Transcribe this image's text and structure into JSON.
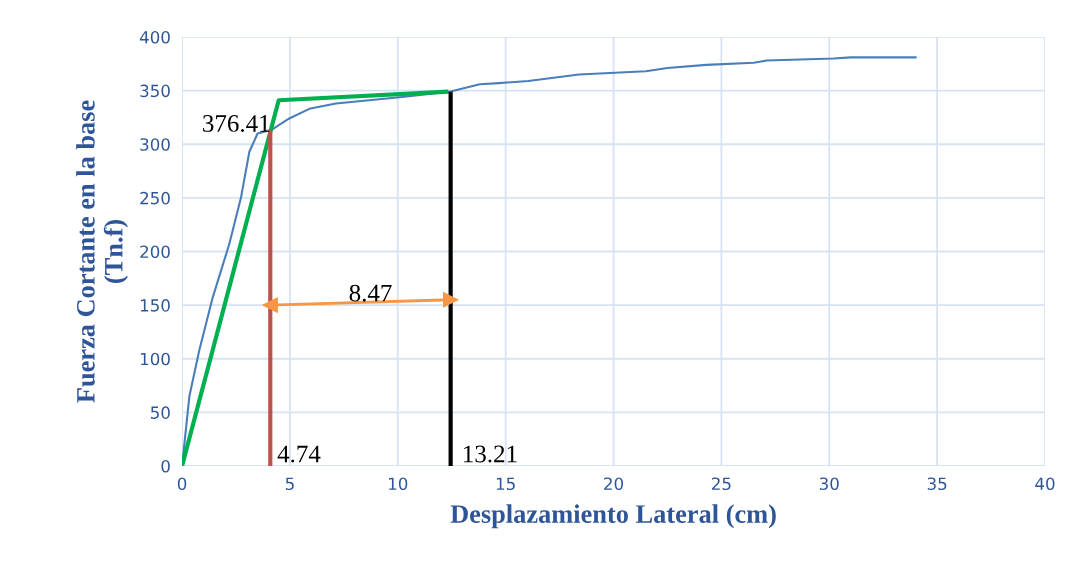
{
  "chart_data": {
    "type": "line",
    "xlabel": "Desplazamiento Lateral (cm)",
    "ylabel": "Fuerza Cortante en la base\n(Tn.f)",
    "xlim": [
      0,
      40
    ],
    "xticks": [
      0,
      5,
      10,
      15,
      20,
      25,
      30,
      35,
      40
    ],
    "ylim": [
      0,
      400
    ],
    "yticks": [
      0,
      50,
      100,
      150,
      200,
      250,
      300,
      350,
      400
    ],
    "grid": true,
    "series": [
      {
        "color": "#4a7ebb",
        "x": [
          0,
          0.34,
          0.8,
          1.42,
          2.19,
          2.73,
          3.12,
          3.5,
          3.89,
          4.2,
          4.97,
          5.9,
          7.13,
          8.67,
          10.2,
          12.4,
          13.8,
          14.7,
          16.05,
          18.4,
          21.5,
          22.5,
          24.3,
          26.5,
          27.1,
          30.2,
          31.0,
          34.05
        ],
        "values": [
          0,
          65,
          108,
          157,
          207,
          250,
          293,
          310,
          312,
          314,
          324,
          333,
          338,
          341,
          344,
          349,
          356,
          357,
          359,
          365,
          368,
          371,
          374,
          376,
          378,
          380,
          381,
          381
        ]
      },
      {
        "color": "#00b050",
        "x": [
          0,
          4.48,
          12.35
        ],
        "values": [
          0,
          341,
          349
        ]
      },
      {
        "color": "#c0504d",
        "x": [
          4.09,
          4.09
        ],
        "values": [
          0,
          313
        ]
      },
      {
        "color": "#000000",
        "x": [
          12.45,
          12.45
        ],
        "values": [
          0,
          349
        ]
      },
      {
        "color": "#f79646",
        "marker": "triangle",
        "x": [
          4.09,
          12.45
        ],
        "values": [
          150,
          155
        ]
      }
    ],
    "annotations": [
      "376.41",
      "4.74",
      "13.21",
      "8.47"
    ]
  }
}
